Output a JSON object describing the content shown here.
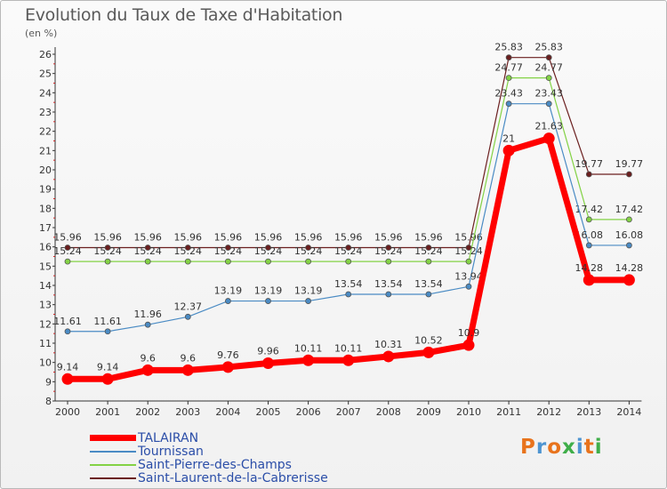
{
  "title": "Evolution du Taux de Taxe d'Habitation",
  "unit": "(en %)",
  "brand": {
    "letters": [
      "P",
      "r",
      "o",
      "x",
      "i",
      "t",
      "i"
    ],
    "colors": [
      "#e8731c",
      "#4d94d1",
      "#e8731c",
      "#3fae49",
      "#4d94d1",
      "#e8731c",
      "#3fae49"
    ]
  },
  "chart_data": {
    "type": "line",
    "x": [
      "2000",
      "2001",
      "2002",
      "2003",
      "2004",
      "2005",
      "2006",
      "2007",
      "2008",
      "2009",
      "2010",
      "2011",
      "2012",
      "2013",
      "2014"
    ],
    "ylim": [
      8,
      26
    ],
    "yticks": [
      8,
      9,
      10,
      11,
      12,
      13,
      14,
      15,
      16,
      17,
      18,
      19,
      20,
      21,
      22,
      23,
      24,
      25,
      26
    ],
    "grid": false,
    "legend_position": "bottom-left",
    "series": [
      {
        "name": "Saint-Laurent-de-la-Cabrerisse",
        "color": "#6b1f1f",
        "width": 1.2,
        "values": [
          15.96,
          15.96,
          15.96,
          15.96,
          15.96,
          15.96,
          15.96,
          15.96,
          15.96,
          15.96,
          15.96,
          25.83,
          25.83,
          19.77,
          19.77
        ],
        "labels": [
          "15.96",
          "15.96",
          "15.96",
          "15.96",
          "15.96",
          "15.96",
          "15.96",
          "15.96",
          "15.96",
          "15.96",
          "15.96",
          "25.83",
          "25.83",
          "19.77",
          "19.77"
        ]
      },
      {
        "name": "Saint-Pierre-des-Champs",
        "color": "#83d245",
        "width": 1.2,
        "values": [
          15.24,
          15.24,
          15.24,
          15.24,
          15.24,
          15.24,
          15.24,
          15.24,
          15.24,
          15.24,
          15.24,
          24.77,
          24.77,
          17.42,
          17.42
        ],
        "labels": [
          "15.24",
          "15.24",
          "15.24",
          "15.24",
          "15.24",
          "15.24",
          "15.24",
          "15.24",
          "15.24",
          "15.24",
          "15.24",
          "24.77",
          "24.77",
          "17.42",
          "17.42"
        ]
      },
      {
        "name": "Tournissan",
        "color": "#4a8bc4",
        "width": 1.2,
        "values": [
          11.61,
          11.61,
          11.96,
          12.37,
          13.19,
          13.19,
          13.19,
          13.54,
          13.54,
          13.54,
          13.94,
          23.43,
          23.43,
          16.08,
          16.08
        ],
        "labels": [
          "11.61",
          "11.61",
          "11.96",
          "12.37",
          "13.19",
          "13.19",
          "13.19",
          "13.54",
          "13.54",
          "13.54",
          "13.94",
          "23.43",
          "23.43",
          "16.08",
          "16.08"
        ]
      },
      {
        "name": "TALAIRAN",
        "color": "#ff0000",
        "width": 7,
        "values": [
          9.14,
          9.14,
          9.6,
          9.6,
          9.76,
          9.96,
          10.11,
          10.11,
          10.31,
          10.52,
          10.9,
          21,
          21.63,
          14.28,
          14.28
        ],
        "labels": [
          "9.14",
          "9.14",
          "9.6",
          "9.6",
          "9.76",
          "9.96",
          "10.11",
          "10.11",
          "10.31",
          "10.52",
          "10.9",
          "21",
          "21.63",
          "14.28",
          "14.28"
        ]
      }
    ],
    "legend": [
      "TALAIRAN",
      "Tournissan",
      "Saint-Pierre-des-Champs",
      "Saint-Laurent-de-la-Cabrerisse"
    ]
  }
}
